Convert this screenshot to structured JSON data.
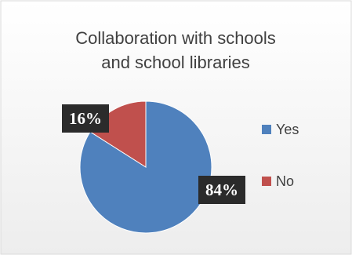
{
  "colors": {
    "yes": "#4f81bd",
    "no": "#c0504d",
    "background": "#f2f2f2",
    "label_box": "#2b2b2b"
  },
  "chart_data": {
    "type": "pie",
    "title_lines": [
      "Collaboration with schools",
      "and school libraries"
    ],
    "categories": [
      "Yes",
      "No"
    ],
    "values": [
      84,
      16
    ],
    "data_labels": [
      "84%",
      "16%"
    ],
    "legend_position": "right"
  }
}
